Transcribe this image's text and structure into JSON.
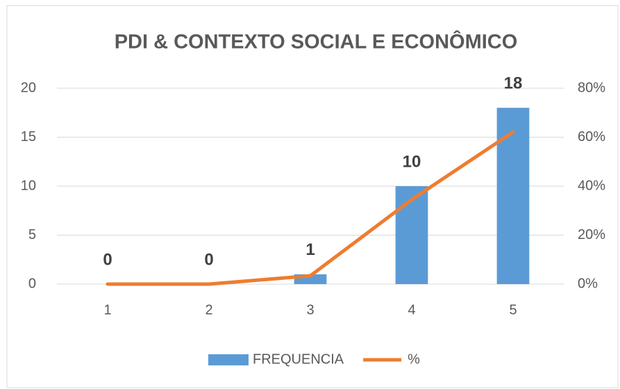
{
  "chart_data": {
    "type": "bar",
    "title": "PDI & CONTEXTO SOCIAL E ECONÔMICO",
    "categories": [
      "1",
      "2",
      "3",
      "4",
      "5"
    ],
    "series": [
      {
        "name": "FREQUENCIA",
        "type": "bar",
        "color": "#5b9bd5",
        "values": [
          0,
          0,
          1,
          10,
          18
        ]
      },
      {
        "name": "%",
        "type": "line",
        "axis": "y2",
        "color": "#ed7d31",
        "values": [
          0,
          0,
          3.4,
          34.5,
          62.1
        ]
      }
    ],
    "ylim": [
      0,
      20
    ],
    "yticks": [
      0,
      5,
      10,
      15,
      20
    ],
    "y2lim": [
      0,
      80
    ],
    "y2ticks": [
      {
        "value": 0,
        "label": "0%"
      },
      {
        "value": 20,
        "label": "20%"
      },
      {
        "value": 40,
        "label": "40%"
      },
      {
        "value": 60,
        "label": "60%"
      },
      {
        "value": 80,
        "label": "80%"
      }
    ],
    "grid": true,
    "legend": "bottom"
  }
}
